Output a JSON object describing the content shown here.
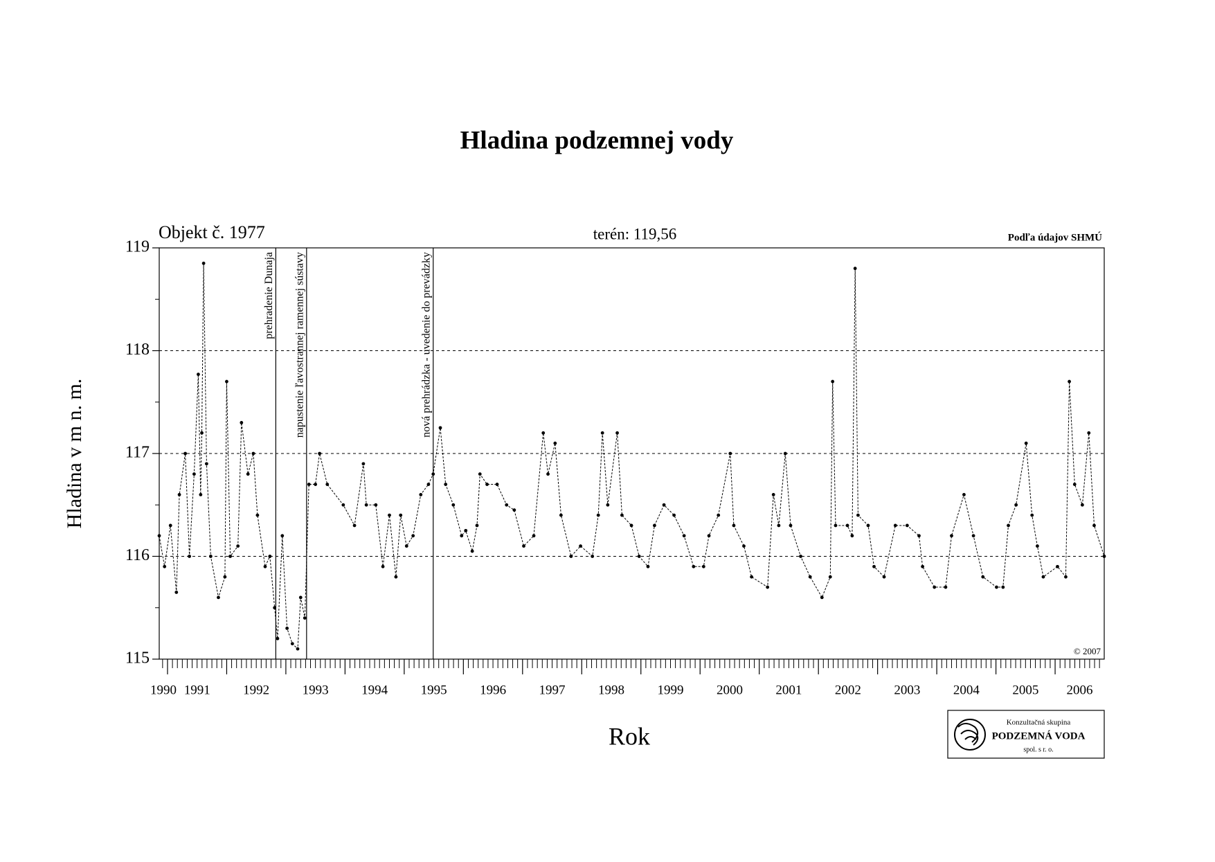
{
  "chart_data": {
    "type": "line",
    "title": "Hladina podzemnej vody",
    "subtitle_left": "Objekt č. 1977",
    "subtitle_center": "terén: 119,56",
    "source": "Podľa údajov SHMÚ",
    "copyright": "© 2007",
    "ylabel": "Hladina v m n. m.",
    "xlabel": "Rok",
    "logo": [
      "Konzultačná skupina",
      "PODZEMNÁ VODA",
      "spol. s r. o."
    ],
    "xlim": [
      1990.86,
      2006.83
    ],
    "xticks": [
      1990,
      1991,
      1992,
      1993,
      1994,
      1995,
      1996,
      1997,
      1998,
      1999,
      2000,
      2001,
      2002,
      2003,
      2004,
      2005,
      2006
    ],
    "ylim": [
      115,
      119
    ],
    "yticks": [
      115,
      116,
      117,
      118,
      119
    ],
    "grid": true,
    "color": "#000000",
    "annotations": [
      {
        "x": 1992.83,
        "text": "prehradenie Dunaja"
      },
      {
        "x": 1993.35,
        "text": "napustenie ľavostrannej ramennej sústavy"
      },
      {
        "x": 1995.49,
        "text": "nová prehrádzka - uvedenie do prevádzky"
      }
    ],
    "x": [
      1990.86,
      1990.95,
      1991.05,
      1991.15,
      1991.2,
      1991.3,
      1991.37,
      1991.45,
      1991.52,
      1991.56,
      1991.58,
      1991.61,
      1991.66,
      1991.73,
      1991.86,
      1991.97,
      1992.0,
      1992.06,
      1992.19,
      1992.25,
      1992.36,
      1992.45,
      1992.52,
      1992.65,
      1992.73,
      1992.81,
      1992.86,
      1992.94,
      1993.02,
      1993.11,
      1993.2,
      1993.25,
      1993.32,
      1993.39,
      1993.5,
      1993.57,
      1993.7,
      1993.97,
      1994.16,
      1994.31,
      1994.36,
      1994.52,
      1994.64,
      1994.75,
      1994.86,
      1994.94,
      1995.04,
      1995.15,
      1995.28,
      1995.41,
      1995.49,
      1995.61,
      1995.7,
      1995.83,
      1995.97,
      1996.04,
      1996.15,
      1996.23,
      1996.28,
      1996.4,
      1996.57,
      1996.73,
      1996.86,
      1997.02,
      1997.19,
      1997.35,
      1997.43,
      1997.55,
      1997.65,
      1997.82,
      1997.98,
      1998.18,
      1998.28,
      1998.35,
      1998.44,
      1998.6,
      1998.68,
      1998.84,
      1998.97,
      1999.12,
      1999.23,
      1999.39,
      1999.56,
      1999.73,
      1999.89,
      2000.06,
      2000.15,
      2000.31,
      2000.51,
      2000.57,
      2000.74,
      2000.87,
      2001.14,
      2001.24,
      2001.33,
      2001.44,
      2001.53,
      2001.7,
      2001.86,
      2002.06,
      2002.2,
      2002.24,
      2002.29,
      2002.49,
      2002.57,
      2002.62,
      2002.67,
      2002.84,
      2002.94,
      2003.11,
      2003.3,
      2003.5,
      2003.7,
      2003.76,
      2003.96,
      2004.15,
      2004.25,
      2004.46,
      2004.62,
      2004.78,
      2005.01,
      2005.12,
      2005.21,
      2005.34,
      2005.51,
      2005.61,
      2005.7,
      2005.8,
      2006.04,
      2006.18,
      2006.24,
      2006.33,
      2006.46,
      2006.57,
      2006.66,
      2006.83
    ],
    "values": [
      116.2,
      115.9,
      116.3,
      115.65,
      116.6,
      117.0,
      116.0,
      116.8,
      117.77,
      116.6,
      117.2,
      118.85,
      116.9,
      116.0,
      115.6,
      115.8,
      117.7,
      116.0,
      116.1,
      117.3,
      116.8,
      117.0,
      116.4,
      115.9,
      116.0,
      115.5,
      115.2,
      116.2,
      115.3,
      115.15,
      115.1,
      115.6,
      115.4,
      116.7,
      116.7,
      117.0,
      116.7,
      116.5,
      116.3,
      116.9,
      116.5,
      116.5,
      115.9,
      116.4,
      115.8,
      116.4,
      116.1,
      116.2,
      116.6,
      116.7,
      116.8,
      117.25,
      116.7,
      116.5,
      116.2,
      116.25,
      116.05,
      116.3,
      116.8,
      116.7,
      116.7,
      116.5,
      116.45,
      116.1,
      116.2,
      117.2,
      116.8,
      117.1,
      116.4,
      116.0,
      116.1,
      116.0,
      116.4,
      117.2,
      116.5,
      117.2,
      116.4,
      116.3,
      116.0,
      115.9,
      116.3,
      116.5,
      116.4,
      116.2,
      115.9,
      115.9,
      116.2,
      116.4,
      117.0,
      116.3,
      116.1,
      115.8,
      115.7,
      116.6,
      116.3,
      117.0,
      116.3,
      116.0,
      115.8,
      115.6,
      115.8,
      117.7,
      116.3,
      116.3,
      116.2,
      118.8,
      116.4,
      116.3,
      115.9,
      115.8,
      116.3,
      116.3,
      116.2,
      115.9,
      115.7,
      115.7,
      116.2,
      116.6,
      116.2,
      115.8,
      115.7,
      115.7,
      116.3,
      116.5,
      117.1,
      116.4,
      116.1,
      115.8,
      115.9,
      115.8,
      117.7,
      116.7,
      116.5,
      117.2,
      116.3,
      116.0
    ]
  }
}
